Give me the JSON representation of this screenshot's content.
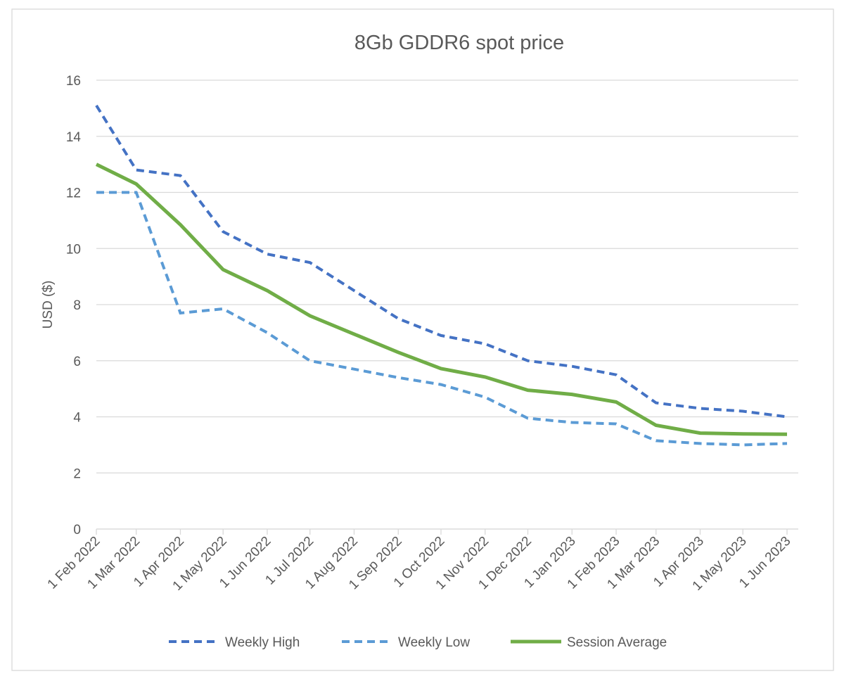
{
  "chart_data": {
    "type": "line",
    "title": "8Gb GDDR6 spot price",
    "y_label": "USD ($)",
    "x": [
      "1 Feb 2022",
      "1 Mar 2022",
      "1 Apr 2022",
      "1 May 2022",
      "1 Jun 2022",
      "1 Jul 2022",
      "1 Aug 2022",
      "1 Sep 2022",
      "1 Oct 2022",
      "1 Nov 2022",
      "1 Dec 2022",
      "1 Jan 2023",
      "1 Feb 2023",
      "1 Mar 2023",
      "1 Apr 2023",
      "1 May 2023",
      "1 Jun 2023"
    ],
    "xticks": [
      "1 Feb 2022",
      "1 Mar 2022",
      "1 Apr 2022",
      "1 May 2022",
      "1 Jun 2022",
      "1 Jul 2022",
      "1 Aug 2022",
      "1 Sep 2022",
      "1 Oct 2022",
      "1 Nov 2022",
      "1 Dec 2022",
      "1 Jan 2023",
      "1 Feb 2023",
      "1 Mar 2023",
      "1 Apr 2023",
      "1 May 2023",
      "1 Jun 2023"
    ],
    "series": [
      {
        "name": "Weekly High",
        "color": "#4472c4",
        "dash": true,
        "values": [
          15.1,
          12.8,
          12.6,
          10.6,
          9.8,
          9.5,
          8.5,
          7.5,
          6.9,
          6.6,
          6.0,
          5.8,
          5.5,
          4.5,
          4.3,
          4.2,
          4.0
        ]
      },
      {
        "name": "Weekly Low",
        "color": "#5b9bd5",
        "dash": true,
        "values": [
          12.0,
          12.0,
          7.7,
          7.85,
          7.0,
          6.0,
          5.7,
          5.4,
          5.15,
          4.7,
          3.95,
          3.8,
          3.75,
          3.15,
          3.05,
          3.0,
          3.05
        ]
      },
      {
        "name": "Session Average",
        "color": "#70ad47",
        "dash": false,
        "values": [
          13.0,
          12.3,
          10.85,
          9.25,
          8.5,
          7.6,
          6.95,
          6.3,
          5.72,
          5.42,
          4.95,
          4.8,
          4.53,
          3.7,
          3.42,
          3.39,
          3.38
        ]
      }
    ],
    "ylim": [
      0,
      16
    ],
    "yticks": [
      0,
      2,
      4,
      6,
      8,
      10,
      12,
      14,
      16
    ],
    "grid": true,
    "legend": "bottom"
  }
}
